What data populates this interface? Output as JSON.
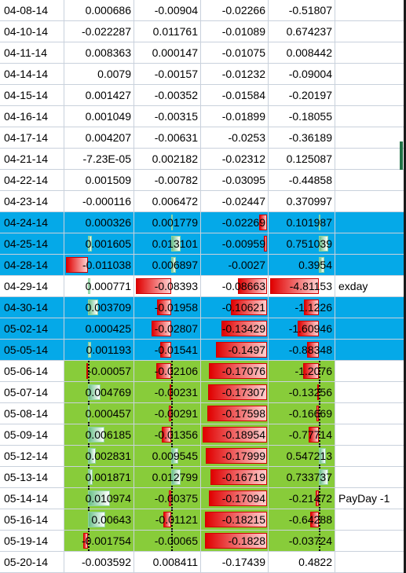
{
  "sheet": {
    "rows": [
      {
        "date": "04-08-14",
        "v1": "0.000686",
        "v2": "-0.00904",
        "v3": "-0.02266",
        "v4": "-0.51807",
        "note": "",
        "style": "plain"
      },
      {
        "date": "04-10-14",
        "v1": "-0.022287",
        "v2": "0.011761",
        "v3": "-0.01089",
        "v4": "0.674237",
        "note": "",
        "style": "plain"
      },
      {
        "date": "04-11-14",
        "v1": "0.008363",
        "v2": "0.000147",
        "v3": "-0.01075",
        "v4": "0.008442",
        "note": "",
        "style": "plain"
      },
      {
        "date": "04-14-14",
        "v1": "0.0079",
        "v2": "-0.00157",
        "v3": "-0.01232",
        "v4": "-0.09004",
        "note": "",
        "style": "plain"
      },
      {
        "date": "04-15-14",
        "v1": "0.001427",
        "v2": "-0.00352",
        "v3": "-0.01584",
        "v4": "-0.20197",
        "note": "",
        "style": "plain"
      },
      {
        "date": "04-16-14",
        "v1": "0.001049",
        "v2": "-0.00315",
        "v3": "-0.01899",
        "v4": "-0.18055",
        "note": "",
        "style": "plain"
      },
      {
        "date": "04-17-14",
        "v1": "0.004207",
        "v2": "-0.00631",
        "v3": "-0.0253",
        "v4": "-0.36189",
        "note": "",
        "style": "plain"
      },
      {
        "date": "04-21-14",
        "v1": "-7.23E-05",
        "v2": "0.002182",
        "v3": "-0.02312",
        "v4": "0.125087",
        "note": "",
        "style": "plain"
      },
      {
        "date": "04-22-14",
        "v1": "0.001509",
        "v2": "-0.00782",
        "v3": "-0.03095",
        "v4": "-0.44858",
        "note": "",
        "style": "plain"
      },
      {
        "date": "04-23-14",
        "v1": "-0.000116",
        "v2": "0.006472",
        "v3": "-0.02447",
        "v4": "0.370997",
        "note": "",
        "style": "plain"
      },
      {
        "date": "04-24-14",
        "v1": "0.000326",
        "v2": "0.001779",
        "v3": "-0.02269",
        "v4": "0.101987",
        "note": "",
        "style": "blue"
      },
      {
        "date": "04-25-14",
        "v1": "0.001605",
        "v2": "0.013101",
        "v3": "-0.00959",
        "v4": "0.751039",
        "note": "",
        "style": "blue"
      },
      {
        "date": "04-28-14",
        "v1": "-0.011038",
        "v2": "0.006897",
        "v3": "-0.0027",
        "v4": "0.3954",
        "note": "",
        "style": "blue"
      },
      {
        "date": "04-29-14",
        "v1": "0.000771",
        "v2": "-0.08393",
        "v3": "-0.08663",
        "v4": "-4.81153",
        "note": "exday",
        "style": "plain"
      },
      {
        "date": "04-30-14",
        "v1": "0.003709",
        "v2": "-0.01958",
        "v3": "-0.10621",
        "v4": "-1.1226",
        "note": "",
        "style": "blue"
      },
      {
        "date": "05-02-14",
        "v1": "0.000425",
        "v2": "-0.02807",
        "v3": "-0.13429",
        "v4": "-1.60946",
        "note": "",
        "style": "blue"
      },
      {
        "date": "05-05-14",
        "v1": "0.001193",
        "v2": "-0.01541",
        "v3": "-0.1497",
        "v4": "-0.88348",
        "note": "",
        "style": "blue"
      },
      {
        "date": "05-06-14",
        "v1": "-0.00057",
        "v2": "-0.02106",
        "v3": "-0.17076",
        "v4": "-1.2076",
        "note": "",
        "style": "green"
      },
      {
        "date": "05-07-14",
        "v1": "0.004769",
        "v2": "-0.00231",
        "v3": "-0.17307",
        "v4": "-0.13256",
        "note": "",
        "style": "green"
      },
      {
        "date": "05-08-14",
        "v1": "0.000457",
        "v2": "-0.00291",
        "v3": "-0.17598",
        "v4": "-0.16669",
        "note": "",
        "style": "green"
      },
      {
        "date": "05-09-14",
        "v1": "0.006185",
        "v2": "-0.01356",
        "v3": "-0.18954",
        "v4": "-0.77714",
        "note": "",
        "style": "green"
      },
      {
        "date": "05-12-14",
        "v1": "0.002831",
        "v2": "0.009545",
        "v3": "-0.17999",
        "v4": "0.547213",
        "note": "",
        "style": "green"
      },
      {
        "date": "05-13-14",
        "v1": "0.001871",
        "v2": "0.012799",
        "v3": "-0.16719",
        "v4": "0.733737",
        "note": "",
        "style": "green"
      },
      {
        "date": "05-14-14",
        "v1": "0.010974",
        "v2": "-0.00375",
        "v3": "-0.17094",
        "v4": "-0.21472",
        "note": "PayDay -1",
        "style": "green"
      },
      {
        "date": "05-16-14",
        "v1": "0.00643",
        "v2": "-0.01121",
        "v3": "-0.18215",
        "v4": "-0.64288",
        "note": "",
        "style": "green"
      },
      {
        "date": "05-19-14",
        "v1": "-0.001754",
        "v2": "-0.00065",
        "v3": "-0.1828",
        "v4": "-0.03724",
        "note": "",
        "style": "green"
      },
      {
        "date": "05-20-14",
        "v1": "-0.003592",
        "v2": "0.008411",
        "v3": "-0.17439",
        "v4": "0.4822",
        "note": "",
        "style": "plain"
      }
    ]
  }
}
